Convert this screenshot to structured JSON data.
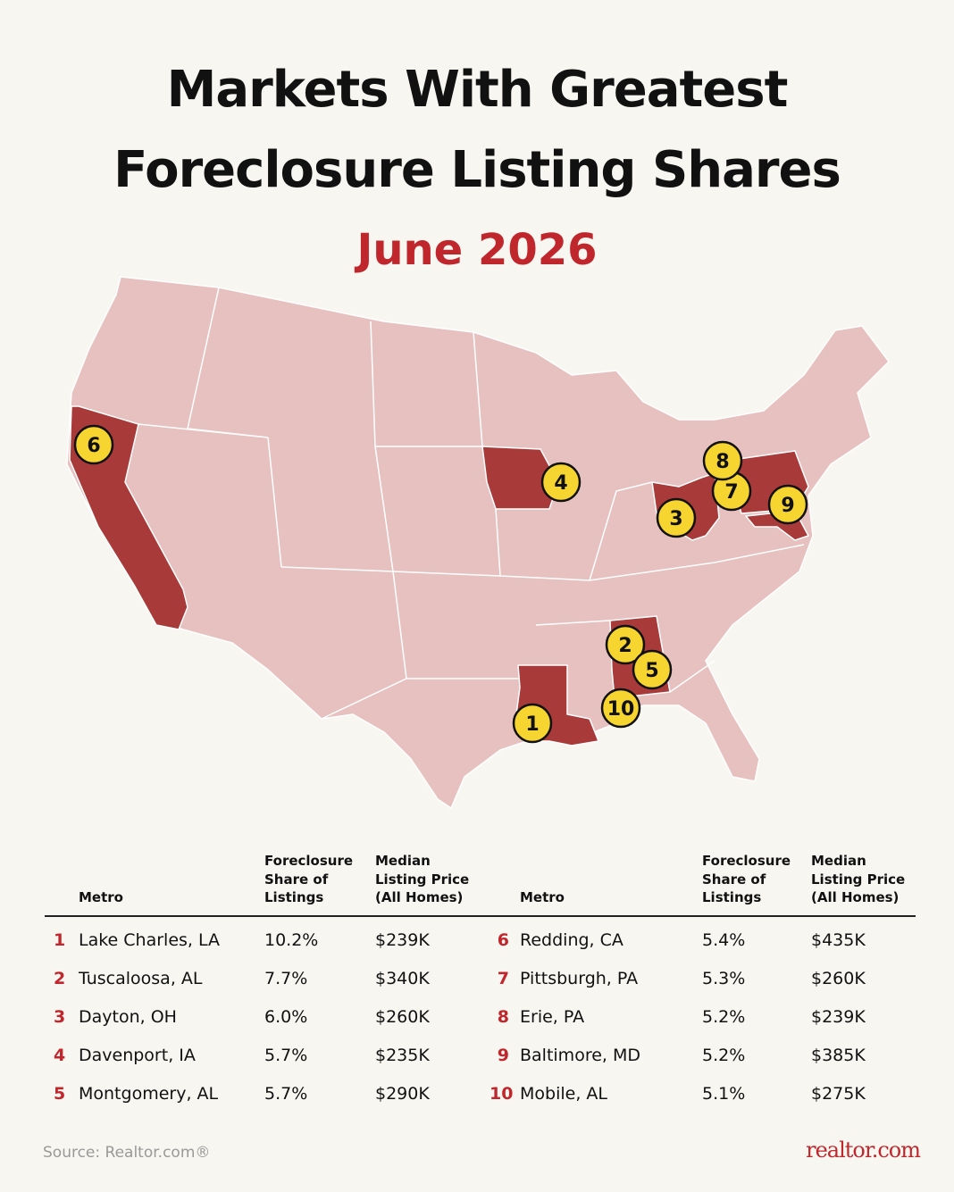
{
  "header": {
    "title_lines": [
      "Markets With Greatest",
      "Foreclosure Listing Shares"
    ],
    "subtitle": "June 2026"
  },
  "map": {
    "markers": [
      "1",
      "2",
      "3",
      "4",
      "5",
      "6",
      "7",
      "8",
      "9",
      "10"
    ]
  },
  "table": {
    "columns": [
      "Metro",
      "Foreclosure Share of Listings",
      "Median Listing Price (All Homes)"
    ],
    "rows": [
      [
        "1",
        "Lake Charles, LA",
        "10.2%",
        "$239K"
      ],
      [
        "2",
        "Tuscaloosa, AL",
        "7.7%",
        "$340K"
      ],
      [
        "3",
        "Dayton, OH",
        "6.0%",
        "$260K"
      ],
      [
        "4",
        "Davenport, IA",
        "5.7%",
        "$235K"
      ],
      [
        "5",
        "Montgomery, AL",
        "5.7%",
        "$290K"
      ],
      [
        "6",
        "Redding, CA",
        "5.4%",
        "$435K"
      ],
      [
        "7",
        "Pittsburgh, PA",
        "5.3%",
        "$260K"
      ],
      [
        "8",
        "Erie, PA",
        "5.2%",
        "$239K"
      ],
      [
        "9",
        "Baltimore, MD",
        "5.2%",
        "$385K"
      ],
      [
        "10",
        "Mobile, AL",
        "5.1%",
        "$275K"
      ]
    ]
  },
  "footer": {
    "source": "Source: Realtor.com®",
    "logo": "realtor.com"
  }
}
